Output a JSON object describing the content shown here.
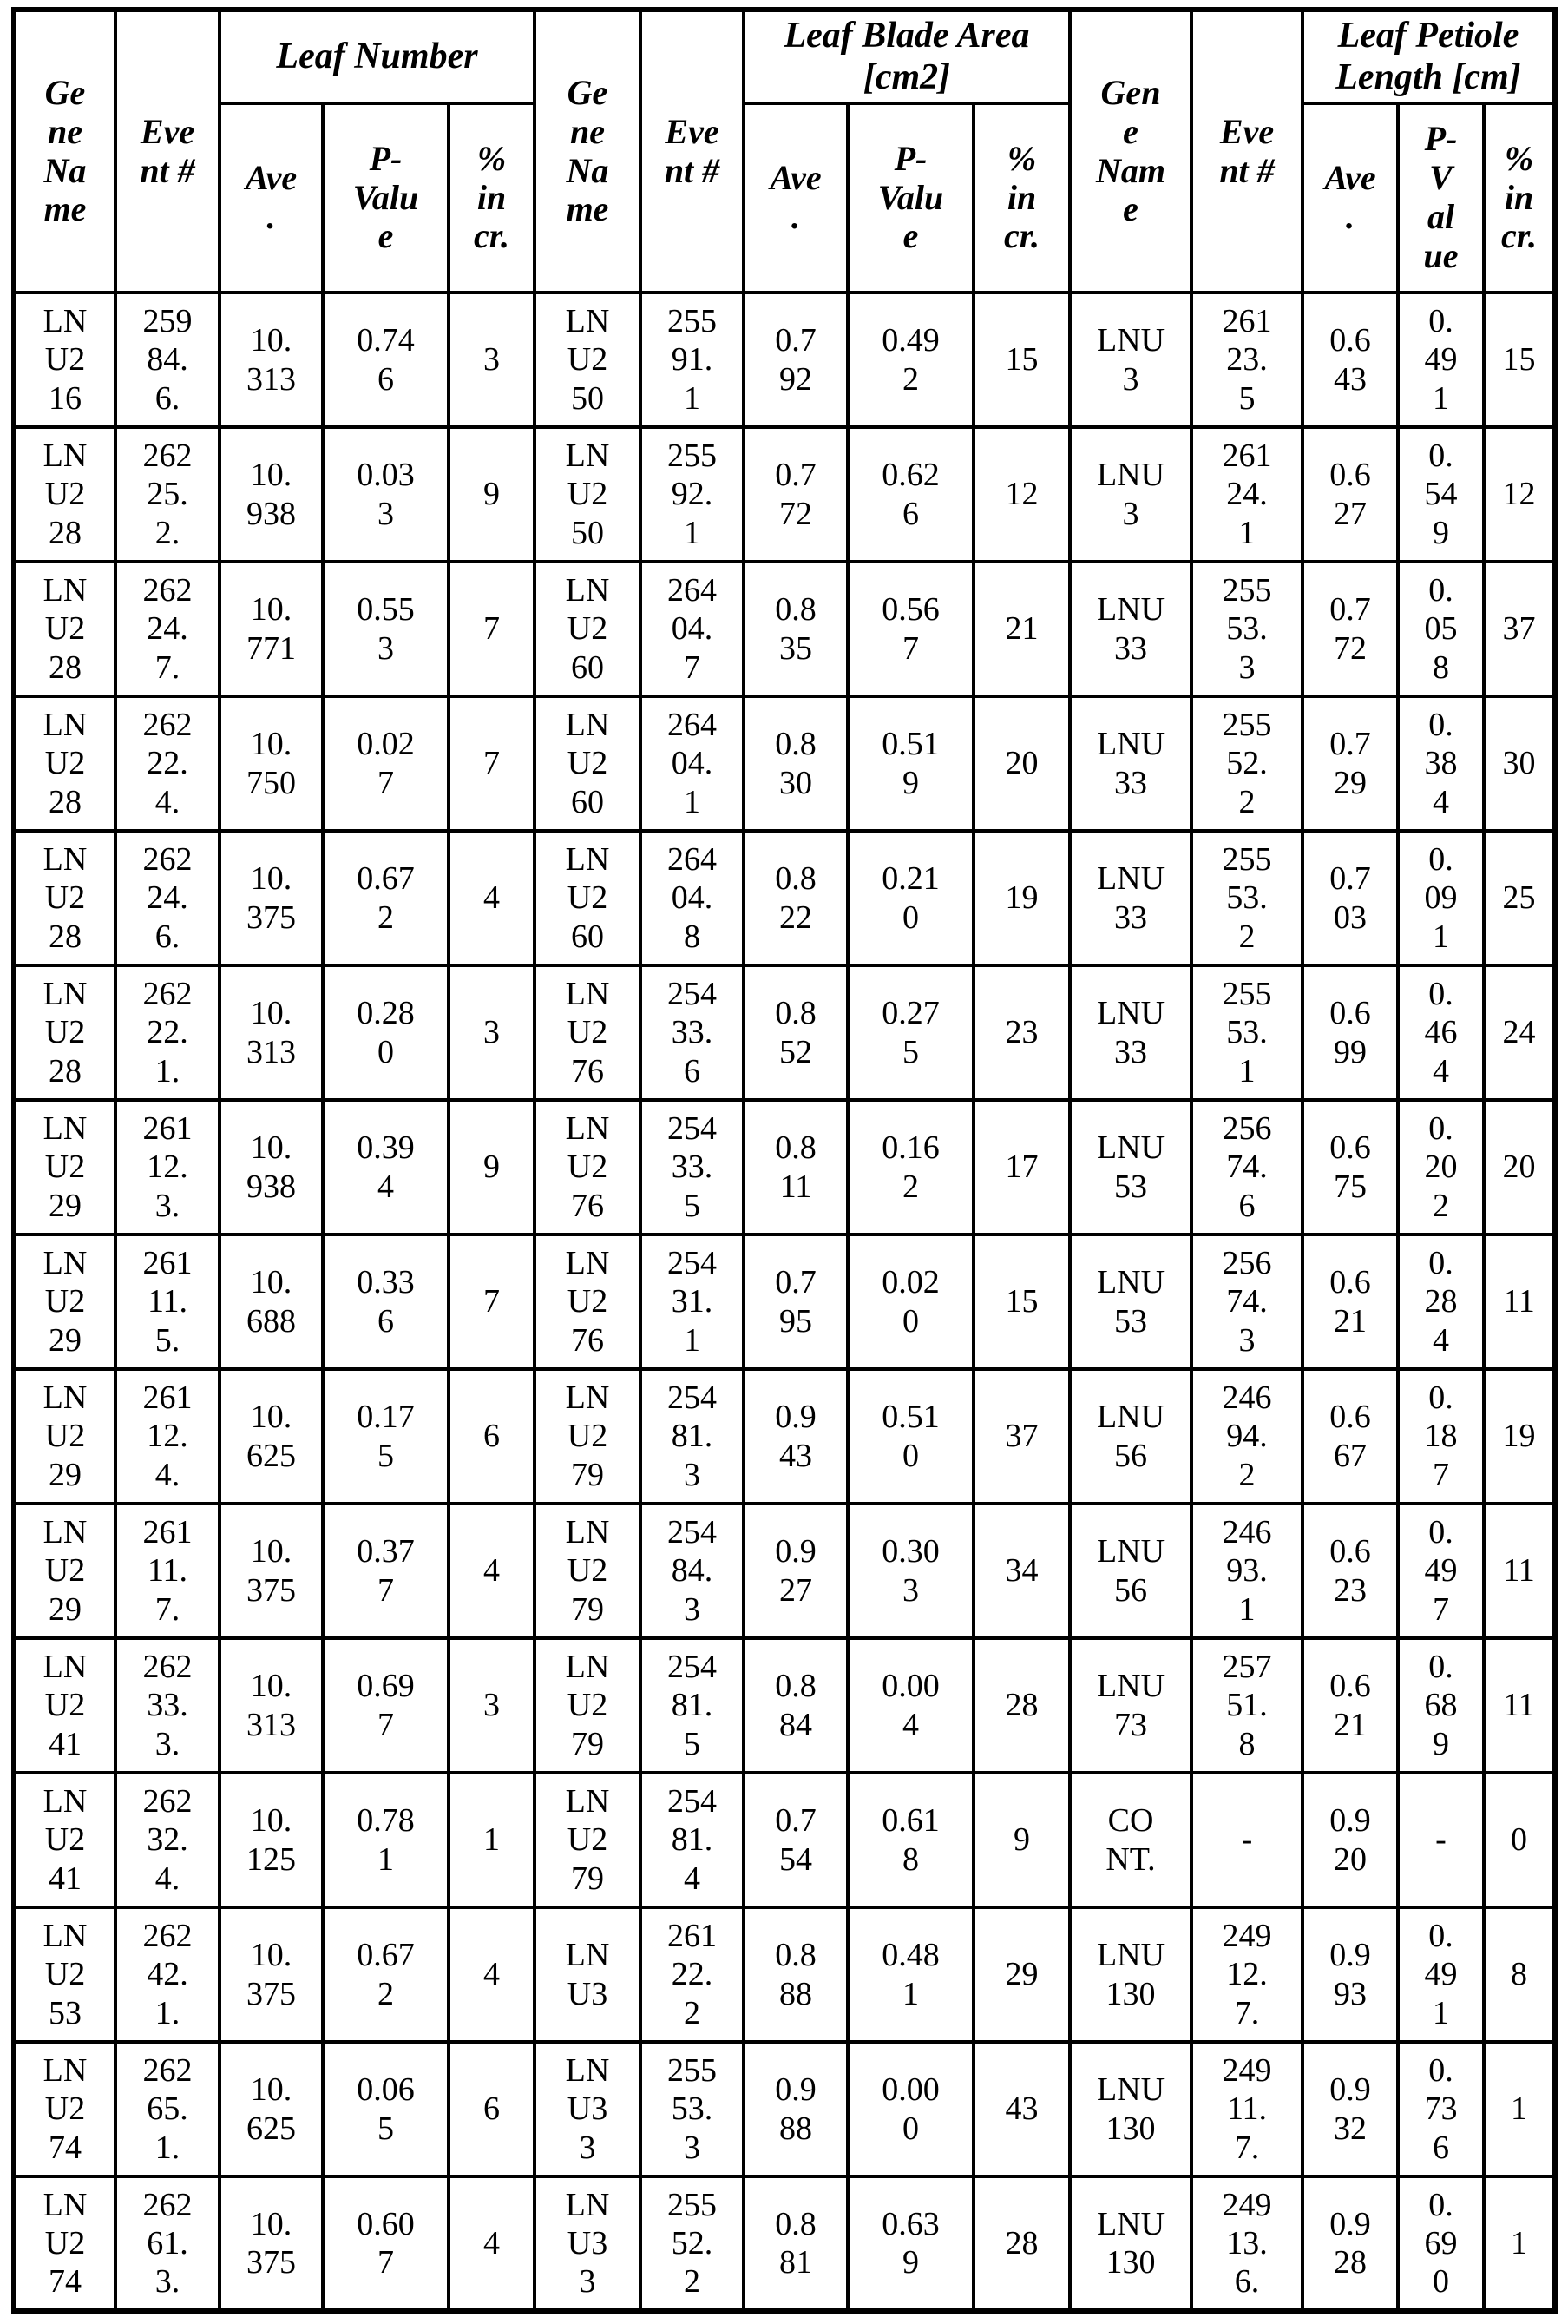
{
  "page": {
    "background": "#ffffff",
    "ink_color": "#000000"
  },
  "table": {
    "sections": [
      {
        "group_header": "Leaf Number",
        "headers": {
          "gene": "Ge\nne\nNa\nme",
          "event": "Eve\nnt #",
          "ave": "Ave\n.",
          "pvalue": "P-\nValu\ne",
          "incr": "%\nin\ncr."
        },
        "rows": [
          {
            "gene": "LN\nU2\n16",
            "event": "259\n84.\n6.",
            "ave": "10.\n313",
            "pvalue": "0.74\n6",
            "incr": "3"
          },
          {
            "gene": "LN\nU2\n28",
            "event": "262\n25.\n2.",
            "ave": "10.\n938",
            "pvalue": "0.03\n3",
            "incr": "9"
          },
          {
            "gene": "LN\nU2\n28",
            "event": "262\n24.\n7.",
            "ave": "10.\n771",
            "pvalue": "0.55\n3",
            "incr": "7"
          },
          {
            "gene": "LN\nU2\n28",
            "event": "262\n22.\n4.",
            "ave": "10.\n750",
            "pvalue": "0.02\n7",
            "incr": "7"
          },
          {
            "gene": "LN\nU2\n28",
            "event": "262\n24.\n6.",
            "ave": "10.\n375",
            "pvalue": "0.67\n2",
            "incr": "4"
          },
          {
            "gene": "LN\nU2\n28",
            "event": "262\n22.\n1.",
            "ave": "10.\n313",
            "pvalue": "0.28\n0",
            "incr": "3"
          },
          {
            "gene": "LN\nU2\n29",
            "event": "261\n12.\n3.",
            "ave": "10.\n938",
            "pvalue": "0.39\n4",
            "incr": "9"
          },
          {
            "gene": "LN\nU2\n29",
            "event": "261\n11.\n5.",
            "ave": "10.\n688",
            "pvalue": "0.33\n6",
            "incr": "7"
          },
          {
            "gene": "LN\nU2\n29",
            "event": "261\n12.\n4.",
            "ave": "10.\n625",
            "pvalue": "0.17\n5",
            "incr": "6"
          },
          {
            "gene": "LN\nU2\n29",
            "event": "261\n11.\n7.",
            "ave": "10.\n375",
            "pvalue": "0.37\n7",
            "incr": "4"
          },
          {
            "gene": "LN\nU2\n41",
            "event": "262\n33.\n3.",
            "ave": "10.\n313",
            "pvalue": "0.69\n7",
            "incr": "3"
          },
          {
            "gene": "LN\nU2\n41",
            "event": "262\n32.\n4.",
            "ave": "10.\n125",
            "pvalue": "0.78\n1",
            "incr": "1"
          },
          {
            "gene": "LN\nU2\n53",
            "event": "262\n42.\n1.",
            "ave": "10.\n375",
            "pvalue": "0.67\n2",
            "incr": "4"
          },
          {
            "gene": "LN\nU2\n74",
            "event": "262\n65.\n1.",
            "ave": "10.\n625",
            "pvalue": "0.06\n5",
            "incr": "6"
          },
          {
            "gene": "LN\nU2\n74",
            "event": "262\n61.\n3.",
            "ave": "10.\n375",
            "pvalue": "0.60\n7",
            "incr": "4"
          }
        ]
      },
      {
        "group_header": "Leaf Blade Area\n[cm2]",
        "headers": {
          "gene": "Ge\nne\nNa\nme",
          "event": "Eve\nnt #",
          "ave": "Ave\n.",
          "pvalue": "P-\nValu\ne",
          "incr": "%\nin\ncr."
        },
        "rows": [
          {
            "gene": "LN\nU2\n50",
            "event": "255\n91.\n1",
            "ave": "0.7\n92",
            "pvalue": "0.49\n2",
            "incr": "15"
          },
          {
            "gene": "LN\nU2\n50",
            "event": "255\n92.\n1",
            "ave": "0.7\n72",
            "pvalue": "0.62\n6",
            "incr": "12"
          },
          {
            "gene": "LN\nU2\n60",
            "event": "264\n04.\n7",
            "ave": "0.8\n35",
            "pvalue": "0.56\n7",
            "incr": "21"
          },
          {
            "gene": "LN\nU2\n60",
            "event": "264\n04.\n1",
            "ave": "0.8\n30",
            "pvalue": "0.51\n9",
            "incr": "20"
          },
          {
            "gene": "LN\nU2\n60",
            "event": "264\n04.\n8",
            "ave": "0.8\n22",
            "pvalue": "0.21\n0",
            "incr": "19"
          },
          {
            "gene": "LN\nU2\n76",
            "event": "254\n33.\n6",
            "ave": "0.8\n52",
            "pvalue": "0.27\n5",
            "incr": "23"
          },
          {
            "gene": "LN\nU2\n76",
            "event": "254\n33.\n5",
            "ave": "0.8\n11",
            "pvalue": "0.16\n2",
            "incr": "17"
          },
          {
            "gene": "LN\nU2\n76",
            "event": "254\n31.\n1",
            "ave": "0.7\n95",
            "pvalue": "0.02\n0",
            "incr": "15"
          },
          {
            "gene": "LN\nU2\n79",
            "event": "254\n81.\n3",
            "ave": "0.9\n43",
            "pvalue": "0.51\n0",
            "incr": "37"
          },
          {
            "gene": "LN\nU2\n79",
            "event": "254\n84.\n3",
            "ave": "0.9\n27",
            "pvalue": "0.30\n3",
            "incr": "34"
          },
          {
            "gene": "LN\nU2\n79",
            "event": "254\n81.\n5",
            "ave": "0.8\n84",
            "pvalue": "0.00\n4",
            "incr": "28"
          },
          {
            "gene": "LN\nU2\n79",
            "event": "254\n81.\n4",
            "ave": "0.7\n54",
            "pvalue": "0.61\n8",
            "incr": "9"
          },
          {
            "gene": "LN\nU3",
            "event": "261\n22.\n2",
            "ave": "0.8\n88",
            "pvalue": "0.48\n1",
            "incr": "29"
          },
          {
            "gene": "LN\nU3\n3",
            "event": "255\n53.\n3",
            "ave": "0.9\n88",
            "pvalue": "0.00\n0",
            "incr": "43"
          },
          {
            "gene": "LN\nU3\n3",
            "event": "255\n52.\n2",
            "ave": "0.8\n81",
            "pvalue": "0.63\n9",
            "incr": "28"
          }
        ]
      },
      {
        "group_header": "Leaf Petiole\nLength [cm]",
        "headers": {
          "gene": "Gen\ne\nNam\ne",
          "event": "Eve\nnt #",
          "ave": "Ave\n.",
          "pvalue": "P-\nV\nal\nue",
          "incr": "%\nin\ncr."
        },
        "rows": [
          {
            "gene": "LNU\n3",
            "event": "261\n23.\n5",
            "ave": "0.6\n43",
            "pvalue": "0.\n49\n1",
            "incr": "15"
          },
          {
            "gene": "LNU\n3",
            "event": "261\n24.\n1",
            "ave": "0.6\n27",
            "pvalue": "0.\n54\n9",
            "incr": "12"
          },
          {
            "gene": "LNU\n33",
            "event": "255\n53.\n3",
            "ave": "0.7\n72",
            "pvalue": "0.\n05\n8",
            "incr": "37"
          },
          {
            "gene": "LNU\n33",
            "event": "255\n52.\n2",
            "ave": "0.7\n29",
            "pvalue": "0.\n38\n4",
            "incr": "30"
          },
          {
            "gene": "LNU\n33",
            "event": "255\n53.\n2",
            "ave": "0.7\n03",
            "pvalue": "0.\n09\n1",
            "incr": "25"
          },
          {
            "gene": "LNU\n33",
            "event": "255\n53.\n1",
            "ave": "0.6\n99",
            "pvalue": "0.\n46\n4",
            "incr": "24"
          },
          {
            "gene": "LNU\n53",
            "event": "256\n74.\n6",
            "ave": "0.6\n75",
            "pvalue": "0.\n20\n2",
            "incr": "20"
          },
          {
            "gene": "LNU\n53",
            "event": "256\n74.\n3",
            "ave": "0.6\n21",
            "pvalue": "0.\n28\n4",
            "incr": "11"
          },
          {
            "gene": "LNU\n56",
            "event": "246\n94.\n2",
            "ave": "0.6\n67",
            "pvalue": "0.\n18\n7",
            "incr": "19"
          },
          {
            "gene": "LNU\n56",
            "event": "246\n93.\n1",
            "ave": "0.6\n23",
            "pvalue": "0.\n49\n7",
            "incr": "11"
          },
          {
            "gene": "LNU\n73",
            "event": "257\n51.\n8",
            "ave": "0.6\n21",
            "pvalue": "0.\n68\n9",
            "incr": "11"
          },
          {
            "gene": "CO\nNT.",
            "event": "-",
            "ave": "0.9\n20",
            "pvalue": "-",
            "incr": "0"
          },
          {
            "gene": "LNU\n130",
            "event": "249\n12.\n7.",
            "ave": "0.9\n93",
            "pvalue": "0.\n49\n1",
            "incr": "8"
          },
          {
            "gene": "LNU\n130",
            "event": "249\n11.\n7.",
            "ave": "0.9\n32",
            "pvalue": "0.\n73\n6",
            "incr": "1"
          },
          {
            "gene": "LNU\n130",
            "event": "249\n13.\n6.",
            "ave": "0.9\n28",
            "pvalue": "0.\n69\n0",
            "incr": "1"
          }
        ]
      }
    ]
  }
}
